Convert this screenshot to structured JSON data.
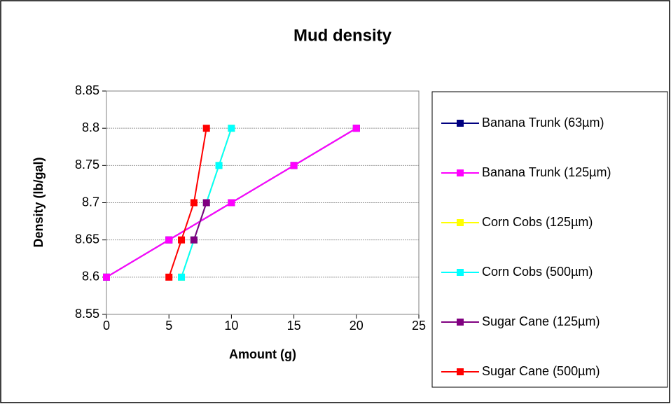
{
  "chart_data": {
    "type": "scatter-line",
    "title": "Mud density",
    "x_label": "Amount (g)",
    "y_label": "Density (lb/gal)",
    "xlim": [
      0,
      25
    ],
    "xticks": [
      0,
      5,
      10,
      15,
      20,
      25
    ],
    "ylim": [
      8.55,
      8.85
    ],
    "yticks": [
      8.55,
      8.6,
      8.65,
      8.7,
      8.75,
      8.8,
      8.85
    ],
    "grid": true,
    "legend": "right",
    "series": [
      {
        "name": "Banana Trunk (63µm)",
        "color": "#000080",
        "x": [
          0,
          5,
          10,
          15,
          20
        ],
        "values": [
          8.6,
          8.65,
          8.7,
          8.75,
          8.8
        ]
      },
      {
        "name": "Banana Trunk (125µm)",
        "color": "#ff00ff",
        "x": [
          0,
          5,
          10,
          15,
          20
        ],
        "values": [
          8.6,
          8.65,
          8.7,
          8.75,
          8.8
        ]
      },
      {
        "name": "Corn Cobs (125µm)",
        "color": "#ffff00",
        "x": [
          6,
          7,
          8,
          9,
          10
        ],
        "values": [
          8.6,
          8.65,
          8.7,
          8.75,
          8.8
        ]
      },
      {
        "name": "Corn Cobs (500µm)",
        "color": "#00ffff",
        "x": [
          6,
          7,
          8,
          9,
          10
        ],
        "values": [
          8.6,
          8.65,
          8.7,
          8.75,
          8.8
        ]
      },
      {
        "name": "Sugar Cane (125µm)",
        "color": "#800080",
        "x": [
          7,
          8
        ],
        "values": [
          8.65,
          8.7
        ]
      },
      {
        "name": "Sugar Cane (500µm)",
        "color": "#ff0000",
        "x": [
          5,
          6,
          7,
          8
        ],
        "values": [
          8.6,
          8.65,
          8.7,
          8.8
        ]
      }
    ]
  }
}
